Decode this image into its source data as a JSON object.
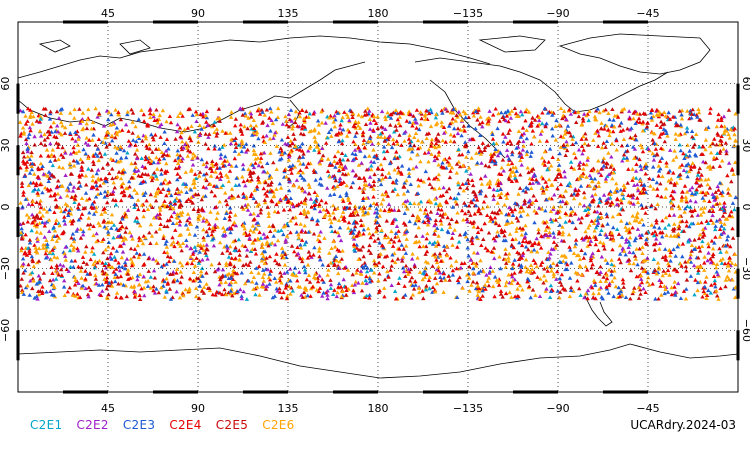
{
  "map": {
    "top_lon_ticks": [
      "45",
      "90",
      "135",
      "180",
      "−135",
      "−90",
      "−45"
    ],
    "bottom_lon_ticks": [
      "45",
      "90",
      "135",
      "180",
      "−135",
      "−90",
      "−45"
    ],
    "lat_ticks": [
      "60",
      "30",
      "0",
      "−30",
      "−60"
    ],
    "lon_tick_values": [
      45,
      90,
      135,
      180,
      225,
      270,
      315
    ],
    "lat_tick_values": [
      60,
      30,
      0,
      -30,
      -60
    ],
    "lon_range": [
      0,
      360
    ],
    "lat_range": [
      -90,
      90
    ],
    "observation_band_lat": [
      -45,
      48
    ],
    "grid": "dotted",
    "border_color": "#000000"
  },
  "legend": [
    {
      "label": "C2E1",
      "color": "#00a6c8"
    },
    {
      "label": "C2E2",
      "color": "#a020c8"
    },
    {
      "label": "C2E3",
      "color": "#1e5ad2"
    },
    {
      "label": "C2E4",
      "color": "#e60000"
    },
    {
      "label": "C2E5",
      "color": "#c80a0a"
    },
    {
      "label": "C2E6",
      "color": "#ffa500"
    }
  ],
  "dataset_label": "UCARdry.2024-03"
}
